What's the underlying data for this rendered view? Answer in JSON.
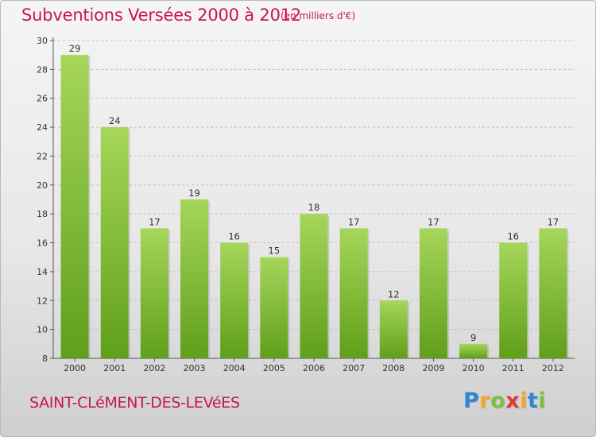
{
  "title": "Subventions Versées 2000 à 2012",
  "subtitle": "(en milliers d'€)",
  "commune": "SAINT-CLéMENT-DES-LEVéES",
  "logo": {
    "letters": [
      "P",
      "r",
      "o",
      "x",
      "i",
      "t",
      "i"
    ],
    "colors": [
      "#2e86d4",
      "#f5a623",
      "#7cc242",
      "#e03a3a",
      "#f5a623",
      "#2e86d4",
      "#7cc242"
    ]
  },
  "colors": {
    "title": "#c8145a",
    "bar_light": "#a6d65a",
    "bar_dark": "#5f9f1a",
    "grid": "#bfbfbf"
  },
  "chart_data": {
    "type": "bar",
    "categories": [
      "2000",
      "2001",
      "2002",
      "2003",
      "2004",
      "2005",
      "2006",
      "2007",
      "2008",
      "2009",
      "2010",
      "2011",
      "2012"
    ],
    "values": [
      29,
      24,
      17,
      19,
      16,
      15,
      18,
      17,
      12,
      17,
      9,
      16,
      17
    ],
    "data_labels": [
      "29",
      "24",
      "17",
      "19",
      "16",
      "15",
      "18",
      "17",
      "12",
      "17",
      "9",
      "16",
      "17"
    ],
    "ylim": [
      8,
      30
    ],
    "yticks": [
      8,
      10,
      12,
      14,
      16,
      18,
      20,
      22,
      24,
      26,
      28,
      30
    ],
    "ytick_labels": [
      "8",
      "10",
      "12",
      "14",
      "16",
      "18",
      "20",
      "22",
      "24",
      "26",
      "28",
      "30"
    ],
    "grid": "horizontal dashed"
  }
}
